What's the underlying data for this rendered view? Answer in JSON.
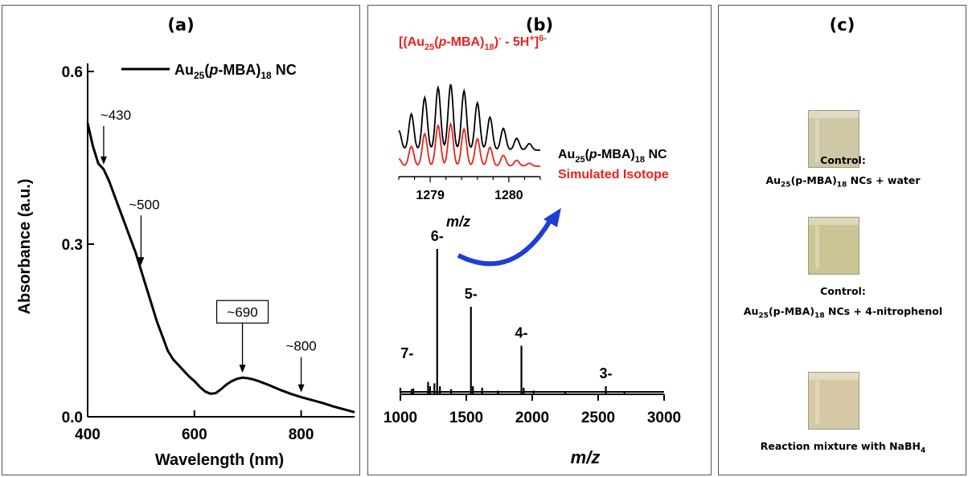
{
  "panels": {
    "a": {
      "label": "(a)"
    },
    "b": {
      "label": "(b)"
    },
    "c": {
      "label": "(c)"
    }
  },
  "chart_data": [
    {
      "type": "line",
      "panel": "(a)",
      "xlabel": "Wavelength (nm)",
      "ylabel": "Absorbance (a.u.)",
      "xlim": [
        400,
        900
      ],
      "ylim": [
        0.0,
        0.6
      ],
      "xticks": [
        400,
        600,
        800
      ],
      "yticks": [
        0.0,
        0.3,
        0.6
      ],
      "ytick_labels": [
        "0.0",
        "0.3",
        "0.6"
      ],
      "legend": {
        "name": "Au25(p-MBA)18 NC",
        "position": "top-right"
      },
      "series": [
        {
          "name": "Au25(p-MBA)18 NC",
          "x": [
            400,
            410,
            420,
            430,
            440,
            450,
            460,
            470,
            480,
            490,
            500,
            510,
            520,
            530,
            540,
            550,
            560,
            570,
            580,
            590,
            600,
            610,
            620,
            630,
            640,
            650,
            660,
            670,
            680,
            690,
            700,
            710,
            720,
            740,
            760,
            780,
            800,
            820,
            840,
            860,
            880,
            900
          ],
          "y": [
            0.51,
            0.47,
            0.44,
            0.43,
            0.41,
            0.385,
            0.36,
            0.335,
            0.31,
            0.285,
            0.255,
            0.225,
            0.195,
            0.165,
            0.14,
            0.115,
            0.1,
            0.09,
            0.08,
            0.07,
            0.062,
            0.052,
            0.044,
            0.04,
            0.041,
            0.048,
            0.056,
            0.062,
            0.066,
            0.068,
            0.067,
            0.065,
            0.062,
            0.055,
            0.047,
            0.04,
            0.034,
            0.029,
            0.024,
            0.018,
            0.013,
            0.008
          ]
        }
      ],
      "annotations": [
        {
          "text": "~430",
          "x": 430,
          "y": 0.43,
          "boxed": false
        },
        {
          "text": "~500",
          "x": 500,
          "y": 0.255,
          "boxed": false
        },
        {
          "text": "~690",
          "x": 690,
          "y": 0.068,
          "boxed": true
        },
        {
          "text": "~800",
          "x": 800,
          "y": 0.034,
          "boxed": false
        }
      ]
    },
    {
      "type": "bar",
      "panel": "(b)",
      "xlabel": "m/z",
      "xlim": [
        1000,
        3000
      ],
      "xticks": [
        1000,
        1500,
        2000,
        2500,
        3000
      ],
      "peaks": [
        {
          "x": 1000,
          "h": 0.04
        },
        {
          "x": 1085,
          "h": 0.03
        },
        {
          "x": 1098,
          "h": 0.035
        },
        {
          "x": 1210,
          "h": 0.08
        },
        {
          "x": 1225,
          "h": 0.05
        },
        {
          "x": 1258,
          "h": 0.07
        },
        {
          "x": 1279,
          "h": 1.0
        },
        {
          "x": 1300,
          "h": 0.05
        },
        {
          "x": 1385,
          "h": 0.03
        },
        {
          "x": 1535,
          "h": 0.6
        },
        {
          "x": 1550,
          "h": 0.05
        },
        {
          "x": 1620,
          "h": 0.04
        },
        {
          "x": 1740,
          "h": 0.02
        },
        {
          "x": 1918,
          "h": 0.33
        },
        {
          "x": 1935,
          "h": 0.04
        },
        {
          "x": 2010,
          "h": 0.02
        },
        {
          "x": 2250,
          "h": 0.015
        },
        {
          "x": 2558,
          "h": 0.05
        },
        {
          "x": 2700,
          "h": 0.015
        }
      ],
      "peak_labels": [
        {
          "text": "7-",
          "x": 1100
        },
        {
          "text": "6-",
          "x": 1279
        },
        {
          "text": "5-",
          "x": 1535
        },
        {
          "text": "4-",
          "x": 1918
        },
        {
          "text": "3-",
          "x": 2558
        }
      ],
      "inset": {
        "title": "[(Au25(p-MBA)18)- - 5H+]6-",
        "xlabel": "m/z",
        "xlim": [
          1278.6,
          1280.4
        ],
        "xticks": [
          1279,
          1280
        ],
        "isotope_peaks": [
          1278.6,
          1278.76,
          1278.93,
          1279.1,
          1279.26,
          1279.43,
          1279.6,
          1279.76,
          1279.93,
          1280.1,
          1280.26
        ],
        "series": [
          {
            "name": "Au25(p-MBA)18 NC",
            "color": "#000000",
            "peak_heights": [
              0.3,
              0.55,
              0.8,
              0.95,
              1.0,
              0.9,
              0.72,
              0.5,
              0.33,
              0.18,
              0.1
            ]
          },
          {
            "name": "Simulated Isotope",
            "color": "#e8231d",
            "peak_heights": [
              0.15,
              0.4,
              0.65,
              0.82,
              0.85,
              0.75,
              0.55,
              0.38,
              0.22,
              0.12,
              0.06
            ]
          }
        ]
      }
    }
  ],
  "vials": [
    {
      "caption_title": "Control:",
      "caption_prefix": "Au",
      "caption_sub1": "25",
      "caption_mid": "(p-MBA)",
      "caption_sub2": "18",
      "caption_suffix": " NCs + water",
      "color": "#cfc8a6"
    },
    {
      "caption_title": "Control:",
      "caption_prefix": "Au",
      "caption_sub1": "25",
      "caption_mid": "(p-MBA)",
      "caption_sub2": "18",
      "caption_suffix": " NCs + 4-nitrophenol",
      "color": "#cbc494"
    },
    {
      "caption_title": "Reaction mixture with NaBH",
      "caption_sub": "4",
      "color": "#d6c8a4"
    }
  ],
  "colors": {
    "blue_arrow": "#1d3fd6",
    "red": "#e8231d"
  }
}
